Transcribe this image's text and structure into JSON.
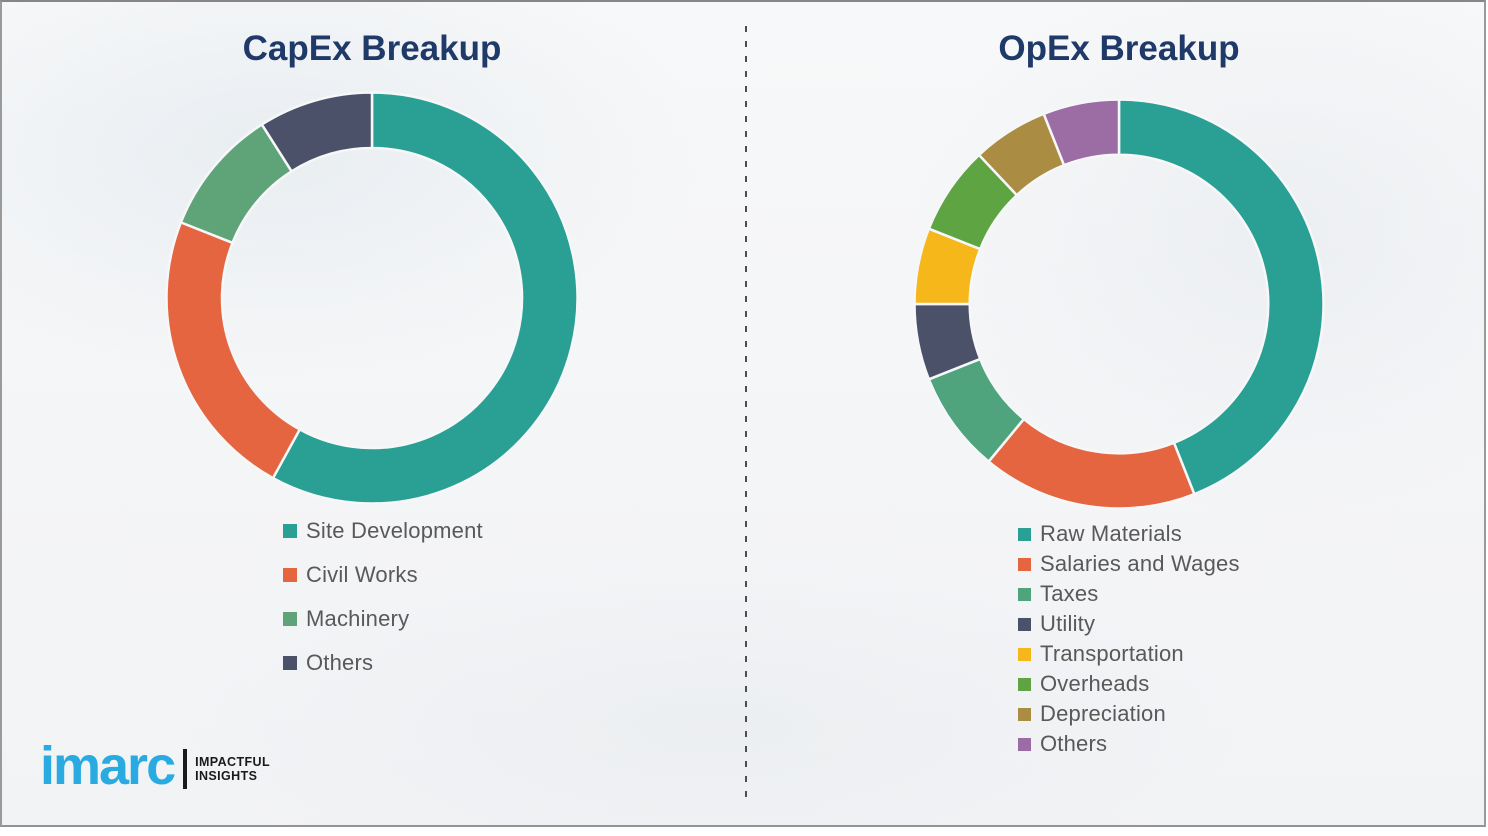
{
  "titles": {
    "left": "CapEx Breakup",
    "right": "OpEx Breakup"
  },
  "logo": {
    "brand": "imarc",
    "tagline_line1": "IMPACTFUL",
    "tagline_line2": "INSIGHTS",
    "brand_color": "#29abe2"
  },
  "theme": {
    "title_color": "#1f3968",
    "legend_text_color": "#595959",
    "divider_color": "#4d4d4d",
    "background_color": "#f5f6f8"
  },
  "chart_data": [
    {
      "type": "pie",
      "variant": "donut",
      "title": "CapEx Breakup",
      "categories": [
        "Site Development",
        "Civil Works",
        "Machinery",
        "Others"
      ],
      "values": [
        58,
        23,
        10,
        9
      ],
      "unit": "percent_estimated",
      "colors": [
        "#2aa094",
        "#e4653f",
        "#5fa379",
        "#4a5169"
      ],
      "start_angle_deg": 0,
      "direction": "clockwise",
      "donut_hole_ratio": 0.73,
      "legend_position": "below-left",
      "data_labels": false
    },
    {
      "type": "pie",
      "variant": "donut",
      "title": "OpEx Breakup",
      "categories": [
        "Raw Materials",
        "Salaries and Wages",
        "Taxes",
        "Utility",
        "Transportation",
        "Overheads",
        "Depreciation",
        "Others"
      ],
      "values": [
        44,
        17,
        8,
        6,
        6,
        7,
        6,
        6
      ],
      "unit": "percent_estimated",
      "colors": [
        "#2aa094",
        "#e4653f",
        "#4fa37d",
        "#4a5169",
        "#f6b71b",
        "#5fa443",
        "#aa8c42",
        "#9c6ca4"
      ],
      "start_angle_deg": 0,
      "direction": "clockwise",
      "donut_hole_ratio": 0.73,
      "legend_position": "below-left",
      "data_labels": false
    }
  ]
}
